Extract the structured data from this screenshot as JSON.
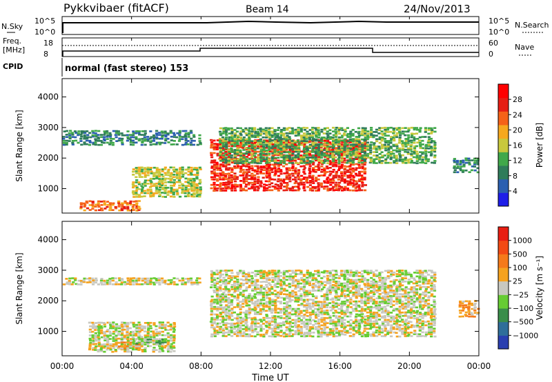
{
  "header": {
    "station": "Pykkvibaer (fitACF)",
    "beam": "Beam 14",
    "date": "24/Nov/2013"
  },
  "noise_panel": {
    "left_label": "N.Sky",
    "right_label": "N.Search",
    "left_ticks": [
      "10^5",
      "10^0"
    ],
    "right_ticks": [
      "10^5",
      "10^0"
    ]
  },
  "freq_panel": {
    "left_label_1": "Freq.",
    "left_label_2": "[MHz]",
    "right_label": "Nave",
    "left_ticks": [
      "18",
      "8"
    ],
    "right_ticks": [
      "60",
      "0"
    ]
  },
  "cpid": {
    "label": "CPID",
    "program": "normal (fast stereo) 153"
  },
  "chart_data": [
    {
      "type": "heatmap",
      "name": "power",
      "ylabel": "Slant Range [km]",
      "ylim": [
        200,
        4600
      ],
      "yticks": [
        "1000",
        "2000",
        "3000",
        "4000"
      ],
      "xlim": [
        0,
        24
      ],
      "colorbar_label": "Power [dB]",
      "colorbar_ticks": [
        "28",
        "24",
        "20",
        "16",
        "12",
        "8",
        "4"
      ],
      "colors": [
        "#1e1ee8",
        "#2b5fb0",
        "#2f7c5a",
        "#40a84a",
        "#c8c83c",
        "#f6a81e",
        "#f56218",
        "#e61e14",
        "#ff0000"
      ],
      "features": [
        {
          "t0": 0.0,
          "t1": 8.0,
          "r0": 2400,
          "r1": 2900,
          "level": 2
        },
        {
          "t0": 1.0,
          "t1": 4.5,
          "r0": 250,
          "r1": 600,
          "level": 6
        },
        {
          "t0": 4.0,
          "t1": 8.0,
          "r0": 700,
          "r1": 1700,
          "level": 4
        },
        {
          "t0": 8.5,
          "t1": 17.5,
          "r0": 900,
          "r1": 2600,
          "level": 7
        },
        {
          "t0": 9.0,
          "t1": 21.5,
          "r0": 1800,
          "r1": 3000,
          "level": 3
        },
        {
          "t0": 22.5,
          "t1": 24.0,
          "r0": 1500,
          "r1": 2000,
          "level": 2
        }
      ]
    },
    {
      "type": "heatmap",
      "name": "velocity",
      "ylabel": "Slant Range [km]",
      "ylim": [
        200,
        4600
      ],
      "yticks": [
        "1000",
        "2000",
        "3000",
        "4000"
      ],
      "xlim": [
        0,
        24
      ],
      "xlabel": "Time UT",
      "xticks": [
        "00:00",
        "04:00",
        "08:00",
        "12:00",
        "16:00",
        "20:00",
        "00:00"
      ],
      "colorbar_label": "Velocity [m s⁻¹]",
      "colorbar_ticks": [
        "1000",
        "500",
        "100",
        "25",
        "−25",
        "−100",
        "−500",
        "−1000"
      ],
      "colors": [
        "#2a3fb0",
        "#2f6e9a",
        "#3a8d4a",
        "#66cc33",
        "#c8c8c0",
        "#f5a21e",
        "#f57a1a",
        "#f24a14",
        "#e81e12"
      ],
      "features": [
        {
          "t0": 0.0,
          "t1": 8.0,
          "r0": 2500,
          "r1": 2750,
          "level": 4
        },
        {
          "t0": 8.5,
          "t1": 21.5,
          "r0": 800,
          "r1": 3000,
          "level": 4
        },
        {
          "t0": 1.5,
          "t1": 6.5,
          "r0": 300,
          "r1": 1300,
          "level": 4
        },
        {
          "t0": 3.0,
          "t1": 4.5,
          "r0": 400,
          "r1": 650,
          "level": 5
        },
        {
          "t0": 4.0,
          "t1": 6.0,
          "r0": 550,
          "r1": 750,
          "level": 3
        },
        {
          "t0": 22.8,
          "t1": 24.0,
          "r0": 1450,
          "r1": 2000,
          "level": 5
        }
      ]
    }
  ]
}
